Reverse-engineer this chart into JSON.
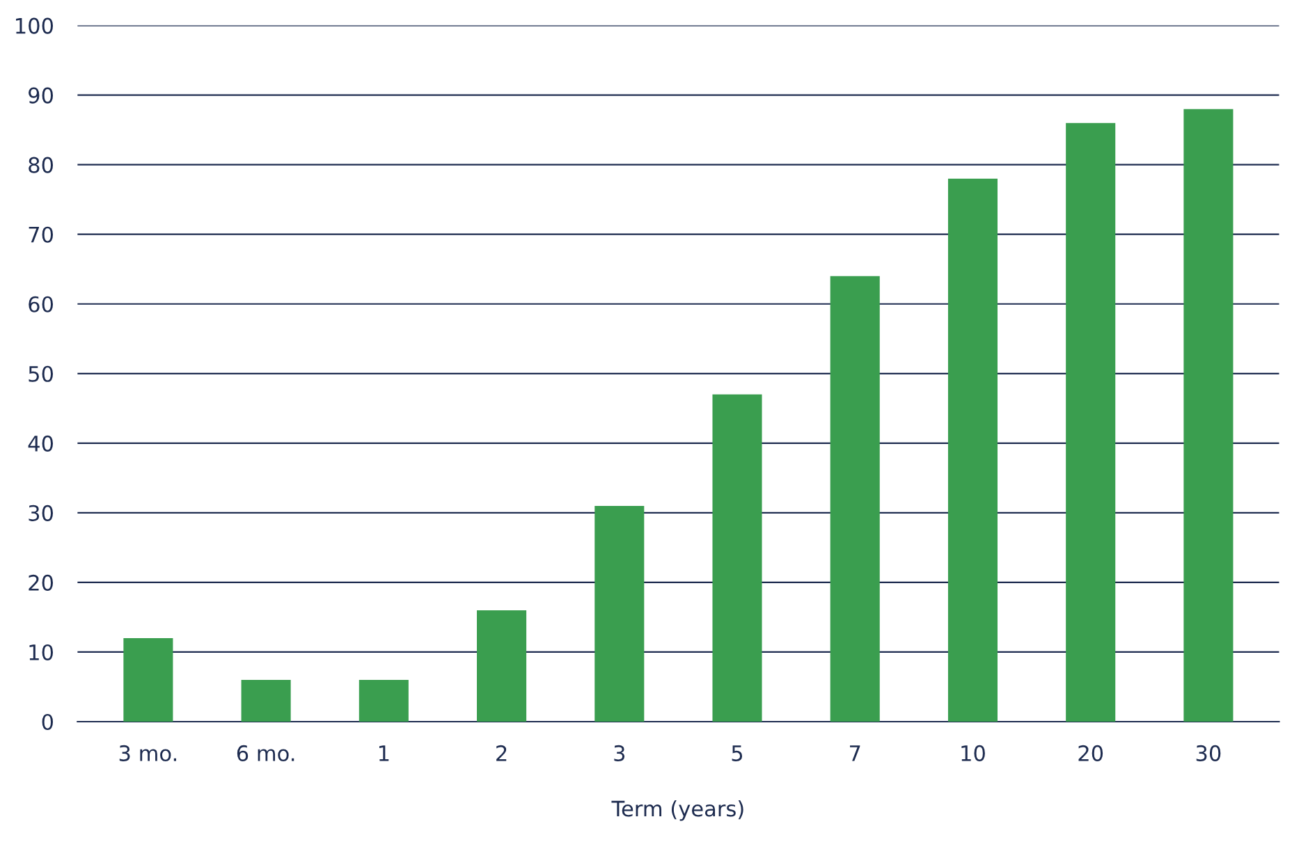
{
  "chart_data": {
    "type": "bar",
    "xlabel": "Term (years)",
    "categories": [
      "3 mo.",
      "6 mo.",
      "1",
      "2",
      "3",
      "5",
      "7",
      "10",
      "20",
      "30"
    ],
    "values": [
      12,
      6,
      6,
      16,
      31,
      47,
      64,
      78,
      86,
      88
    ],
    "color": "#3a9e4f",
    "ylim": [
      0,
      100
    ],
    "yticks": [
      0,
      10,
      20,
      30,
      40,
      50,
      60,
      70,
      80,
      90,
      100
    ],
    "grid": "y",
    "legend": false
  }
}
